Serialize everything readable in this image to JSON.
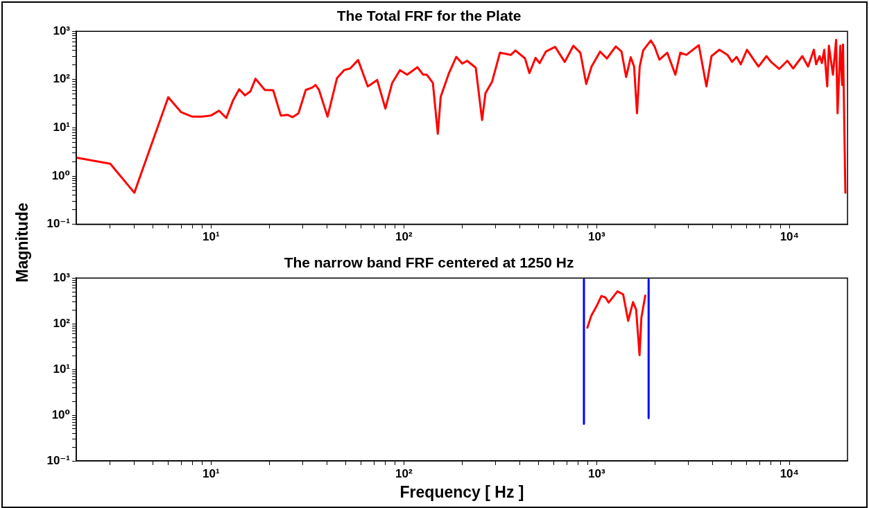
{
  "chart_data": [
    {
      "type": "line",
      "title": "The Total FRF for the Plate",
      "ylabel": "Magnitude",
      "log": "xy",
      "grid": false,
      "legend": false,
      "series": [
        {
          "color": "#ff0000",
          "x": [
            2,
            3,
            4,
            6,
            7,
            8,
            9,
            10,
            11,
            12,
            13,
            14,
            15,
            16,
            17,
            19,
            21,
            23,
            25,
            26.5,
            28.4,
            31,
            33.5,
            34.8,
            36.3,
            40.2,
            45,
            49,
            52.7,
            57.9,
            65,
            72.7,
            80.2,
            87,
            95.5,
            104,
            117.6,
            126,
            131.6,
            141.4,
            150,
            155.3,
            171,
            187,
            201,
            213,
            236,
            254.5,
            265,
            287,
            315,
            359,
            379,
            425,
            448,
            482,
            506,
            545,
            609,
            683,
            757,
            823,
            883,
            941,
            1042,
            1130,
            1257,
            1346,
            1422,
            1502,
            1564,
            1619,
            1672,
            1744,
            1910,
            2002,
            2114,
            2323,
            2559,
            2716,
            2920,
            3388,
            3710,
            3940,
            4330,
            4770,
            5040,
            5320,
            5590,
            6020,
            6910,
            7600,
            8030,
            8840,
            9750,
            10450,
            11660,
            12490,
            13380,
            13750,
            14330,
            14730,
            15150,
            15700,
            16010,
            16810,
            17460,
            17760,
            18360,
            18760,
            18960,
            19500
          ],
          "values": [
            2.4,
            1.8,
            0.45,
            43,
            21,
            17,
            17,
            18,
            22.6,
            16,
            37,
            63,
            47,
            57,
            104,
            61,
            60,
            18,
            18.5,
            16.6,
            20,
            61,
            68,
            77,
            61,
            17,
            107,
            157,
            170,
            254,
            72,
            98,
            25,
            85,
            157,
            126,
            180,
            126,
            126,
            85,
            7.5,
            44,
            133,
            296,
            215,
            245,
            176,
            14.5,
            52,
            91,
            360,
            325,
            400,
            275,
            136,
            282,
            219,
            380,
            476,
            232,
            503,
            360,
            81,
            186,
            380,
            274,
            486,
            380,
            113,
            290,
            186,
            20,
            186,
            403,
            645,
            476,
            259,
            360,
            126,
            360,
            325,
            515,
            72,
            306,
            415,
            325,
            232,
            296,
            207,
            415,
            186,
            306,
            232,
            166,
            245,
            170,
            306,
            186,
            415,
            207,
            306,
            219,
            415,
            72,
            503,
            126,
            665,
            20,
            503,
            77,
            532,
            0.45
          ]
        }
      ],
      "xlim": [
        2,
        20000
      ],
      "ylim": [
        0.1,
        1000
      ],
      "xticks": [
        {
          "value": 3,
          "label": null
        },
        {
          "value": 4,
          "label": null
        },
        {
          "value": 5,
          "label": null
        },
        {
          "value": 6,
          "label": null
        },
        {
          "value": 7,
          "label": null
        },
        {
          "value": 8,
          "label": null
        },
        {
          "value": 9,
          "label": null
        },
        {
          "value": 10,
          "label": "10¹"
        },
        {
          "value": 20,
          "label": null
        },
        {
          "value": 30,
          "label": null
        },
        {
          "value": 40,
          "label": null
        },
        {
          "value": 50,
          "label": null
        },
        {
          "value": 60,
          "label": null
        },
        {
          "value": 70,
          "label": null
        },
        {
          "value": 80,
          "label": null
        },
        {
          "value": 90,
          "label": null
        },
        {
          "value": 100,
          "label": "10²"
        },
        {
          "value": 200,
          "label": null
        },
        {
          "value": 300,
          "label": null
        },
        {
          "value": 400,
          "label": null
        },
        {
          "value": 500,
          "label": null
        },
        {
          "value": 600,
          "label": null
        },
        {
          "value": 700,
          "label": null
        },
        {
          "value": 800,
          "label": null
        },
        {
          "value": 900,
          "label": null
        },
        {
          "value": 1000,
          "label": "10³"
        },
        {
          "value": 2000,
          "label": null
        },
        {
          "value": 3000,
          "label": null
        },
        {
          "value": 4000,
          "label": null
        },
        {
          "value": 5000,
          "label": null
        },
        {
          "value": 6000,
          "label": null
        },
        {
          "value": 7000,
          "label": null
        },
        {
          "value": 8000,
          "label": null
        },
        {
          "value": 9000,
          "label": null
        },
        {
          "value": 10000,
          "label": "10⁴"
        }
      ],
      "yticks": [
        {
          "value": 0.1,
          "label": "10⁻¹"
        },
        {
          "value": 0.2,
          "label": null
        },
        {
          "value": 0.3,
          "label": null
        },
        {
          "value": 0.4,
          "label": null
        },
        {
          "value": 0.5,
          "label": null
        },
        {
          "value": 0.6,
          "label": null
        },
        {
          "value": 0.7,
          "label": null
        },
        {
          "value": 0.8,
          "label": null
        },
        {
          "value": 0.9,
          "label": null
        },
        {
          "value": 1,
          "label": "10⁰"
        },
        {
          "value": 2,
          "label": null
        },
        {
          "value": 3,
          "label": null
        },
        {
          "value": 4,
          "label": null
        },
        {
          "value": 5,
          "label": null
        },
        {
          "value": 6,
          "label": null
        },
        {
          "value": 7,
          "label": null
        },
        {
          "value": 8,
          "label": null
        },
        {
          "value": 9,
          "label": null
        },
        {
          "value": 10,
          "label": "10¹"
        },
        {
          "value": 20,
          "label": null
        },
        {
          "value": 30,
          "label": null
        },
        {
          "value": 40,
          "label": null
        },
        {
          "value": 50,
          "label": null
        },
        {
          "value": 60,
          "label": null
        },
        {
          "value": 70,
          "label": null
        },
        {
          "value": 80,
          "label": null
        },
        {
          "value": 90,
          "label": null
        },
        {
          "value": 100,
          "label": "10²"
        },
        {
          "value": 200,
          "label": null
        },
        {
          "value": 300,
          "label": null
        },
        {
          "value": 400,
          "label": null
        },
        {
          "value": 500,
          "label": null
        },
        {
          "value": 600,
          "label": null
        },
        {
          "value": 700,
          "label": null
        },
        {
          "value": 800,
          "label": null
        },
        {
          "value": 900,
          "label": null
        },
        {
          "value": 1000,
          "label": "10³"
        }
      ]
    },
    {
      "type": "line",
      "title": "The narrow band FRF centered at 1250 Hz",
      "xlabel": "Frequency [ Hz ]",
      "log": "xy",
      "grid": false,
      "legend": false,
      "series": [
        {
          "color": "#ff0000",
          "x": [
            895,
            939,
            1000,
            1058,
            1111,
            1154,
            1282,
            1372,
            1457,
            1544,
            1602,
            1669,
            1706,
            1787
          ],
          "values": [
            82,
            152,
            244,
            405,
            376,
            291,
            512,
            440,
            116,
            298,
            205,
            20.6,
            135,
            414
          ]
        },
        {
          "color": "#0000ff",
          "x": [
            859,
            859
          ],
          "values": [
            930,
            0.65
          ]
        },
        {
          "color": "#0000ff",
          "x": [
            1860,
            1860
          ],
          "values": [
            930,
            0.86
          ]
        }
      ],
      "xlim": [
        2,
        20000
      ],
      "ylim": [
        0.1,
        1000
      ],
      "xticks": [
        {
          "value": 3,
          "label": null
        },
        {
          "value": 4,
          "label": null
        },
        {
          "value": 5,
          "label": null
        },
        {
          "value": 6,
          "label": null
        },
        {
          "value": 7,
          "label": null
        },
        {
          "value": 8,
          "label": null
        },
        {
          "value": 9,
          "label": null
        },
        {
          "value": 10,
          "label": "10¹"
        },
        {
          "value": 20,
          "label": null
        },
        {
          "value": 30,
          "label": null
        },
        {
          "value": 40,
          "label": null
        },
        {
          "value": 50,
          "label": null
        },
        {
          "value": 60,
          "label": null
        },
        {
          "value": 70,
          "label": null
        },
        {
          "value": 80,
          "label": null
        },
        {
          "value": 90,
          "label": null
        },
        {
          "value": 100,
          "label": "10²"
        },
        {
          "value": 200,
          "label": null
        },
        {
          "value": 300,
          "label": null
        },
        {
          "value": 400,
          "label": null
        },
        {
          "value": 500,
          "label": null
        },
        {
          "value": 600,
          "label": null
        },
        {
          "value": 700,
          "label": null
        },
        {
          "value": 800,
          "label": null
        },
        {
          "value": 900,
          "label": null
        },
        {
          "value": 1000,
          "label": "10³"
        },
        {
          "value": 2000,
          "label": null
        },
        {
          "value": 3000,
          "label": null
        },
        {
          "value": 4000,
          "label": null
        },
        {
          "value": 5000,
          "label": null
        },
        {
          "value": 6000,
          "label": null
        },
        {
          "value": 7000,
          "label": null
        },
        {
          "value": 8000,
          "label": null
        },
        {
          "value": 9000,
          "label": null
        },
        {
          "value": 10000,
          "label": "10⁴"
        }
      ],
      "yticks": [
        {
          "value": 0.1,
          "label": "10⁻¹"
        },
        {
          "value": 0.2,
          "label": null
        },
        {
          "value": 0.3,
          "label": null
        },
        {
          "value": 0.4,
          "label": null
        },
        {
          "value": 0.5,
          "label": null
        },
        {
          "value": 0.6,
          "label": null
        },
        {
          "value": 0.7,
          "label": null
        },
        {
          "value": 0.8,
          "label": null
        },
        {
          "value": 0.9,
          "label": null
        },
        {
          "value": 1,
          "label": "10⁰"
        },
        {
          "value": 2,
          "label": null
        },
        {
          "value": 3,
          "label": null
        },
        {
          "value": 4,
          "label": null
        },
        {
          "value": 5,
          "label": null
        },
        {
          "value": 6,
          "label": null
        },
        {
          "value": 7,
          "label": null
        },
        {
          "value": 8,
          "label": null
        },
        {
          "value": 9,
          "label": null
        },
        {
          "value": 10,
          "label": "10¹"
        },
        {
          "value": 20,
          "label": null
        },
        {
          "value": 30,
          "label": null
        },
        {
          "value": 40,
          "label": null
        },
        {
          "value": 50,
          "label": null
        },
        {
          "value": 60,
          "label": null
        },
        {
          "value": 70,
          "label": null
        },
        {
          "value": 80,
          "label": null
        },
        {
          "value": 90,
          "label": null
        },
        {
          "value": 100,
          "label": "10²"
        },
        {
          "value": 200,
          "label": null
        },
        {
          "value": 300,
          "label": null
        },
        {
          "value": 400,
          "label": null
        },
        {
          "value": 500,
          "label": null
        },
        {
          "value": 600,
          "label": null
        },
        {
          "value": 700,
          "label": null
        },
        {
          "value": 800,
          "label": null
        },
        {
          "value": 900,
          "label": null
        },
        {
          "value": 1000,
          "label": "10³"
        }
      ]
    }
  ]
}
